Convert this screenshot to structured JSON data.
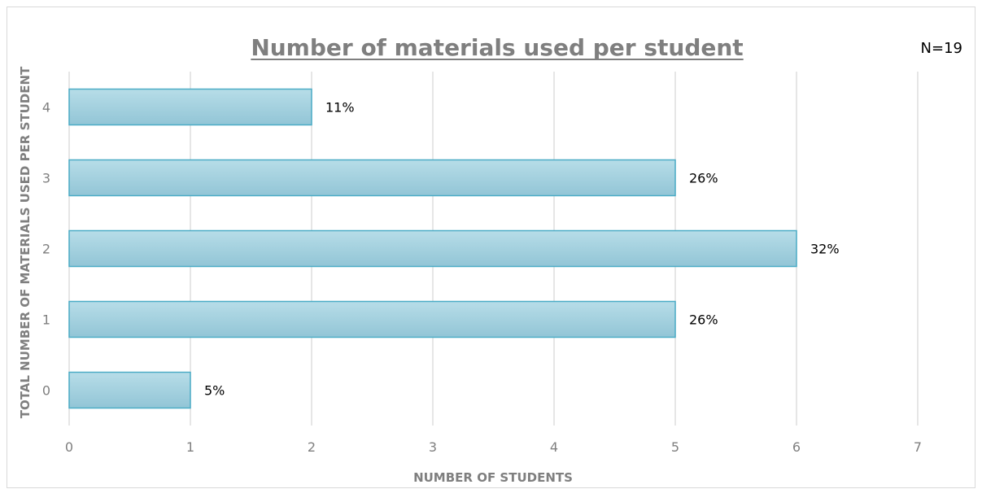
{
  "chart_data": {
    "type": "bar",
    "orientation": "horizontal",
    "title": "Number of materials used per student",
    "annotation": "N=19",
    "xlabel": "NUMBER OF STUDENTS",
    "ylabel": "TOTAL NUMBER OF MATERIALS USED PER STUDENT",
    "categories": [
      "0",
      "1",
      "2",
      "3",
      "4"
    ],
    "values": [
      1,
      5,
      6,
      5,
      2
    ],
    "data_labels": [
      "5%",
      "26%",
      "32%",
      "26%",
      "11%"
    ],
    "xlim": [
      0,
      7
    ],
    "xticks": [
      "0",
      "1",
      "2",
      "3",
      "4",
      "5",
      "6",
      "7"
    ],
    "grid": true,
    "legend": "none",
    "colors": {
      "bar_top": "#b7dde8",
      "bar_bottom": "#92c5d6",
      "bar_border": "#4bacc6",
      "grid": "#d9d9d9",
      "text_gray": "#7f7f7f"
    }
  }
}
